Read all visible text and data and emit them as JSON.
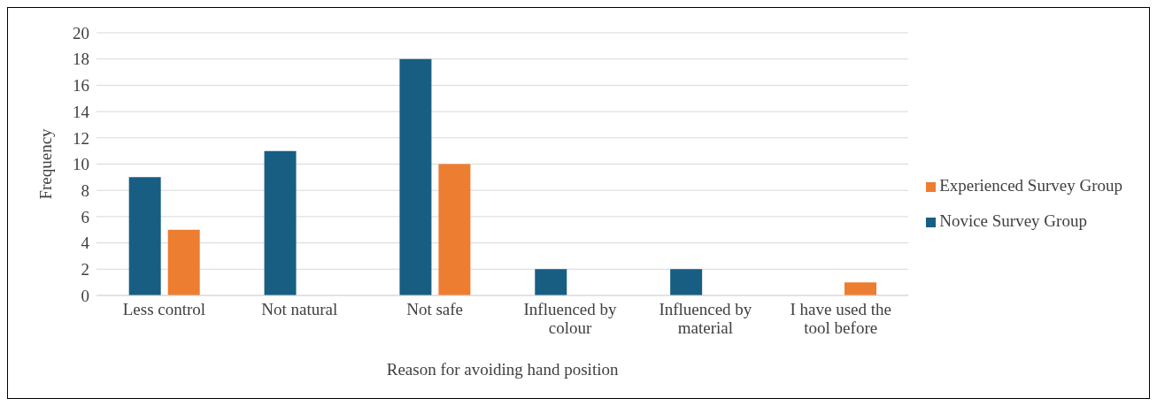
{
  "chart_data": {
    "type": "bar",
    "xlabel": "Reason for avoiding hand position",
    "ylabel": "Frequency",
    "categories": [
      "Less control",
      "Not natural",
      "Not safe",
      "Influenced by colour",
      "Influenced by material",
      "I have used the tool before"
    ],
    "series": [
      {
        "name": "Novice Survey Group",
        "color": "#175e82",
        "values": [
          9,
          11,
          18,
          2,
          2,
          0
        ]
      },
      {
        "name": "Experienced Survey Group",
        "color": "#ed7d31",
        "values": [
          5,
          0,
          10,
          0,
          0,
          1
        ]
      }
    ],
    "ylim": [
      0,
      20
    ],
    "yticks": [
      0,
      2,
      4,
      6,
      8,
      10,
      12,
      14,
      16,
      18,
      20
    ],
    "grid": "y",
    "legend": "right"
  }
}
